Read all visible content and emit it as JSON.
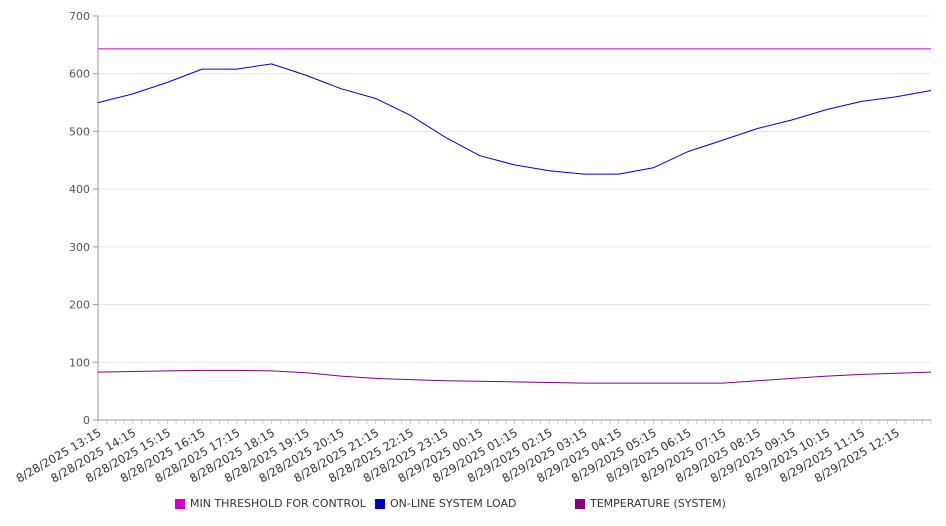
{
  "chart_data": {
    "type": "line",
    "ylim": [
      0,
      700
    ],
    "y_ticks": [
      0,
      100,
      200,
      300,
      400,
      500,
      600,
      700
    ],
    "x_range": [
      "8/28/2025 13:15",
      "8/29/2025 13:15"
    ],
    "x_tick_labels": [
      "8/28/2025 13:15",
      "8/28/2025 14:15",
      "8/28/2025 15:15",
      "8/28/2025 16:15",
      "8/28/2025 17:15",
      "8/28/2025 18:15",
      "8/28/2025 19:15",
      "8/28/2025 20:15",
      "8/28/2025 21:15",
      "8/28/2025 22:15",
      "8/28/2025 23:15",
      "8/29/2025 00:15",
      "8/29/2025 01:15",
      "8/29/2025 02:15",
      "8/29/2025 03:15",
      "8/29/2025 04:15",
      "8/29/2025 05:15",
      "8/29/2025 06:15",
      "8/29/2025 07:15",
      "8/29/2025 08:15",
      "8/29/2025 09:15",
      "8/29/2025 10:15",
      "8/29/2025 11:15",
      "8/29/2025 12:15"
    ],
    "grid": true,
    "legend_position": "bottom",
    "series": [
      {
        "name": "MIN THRESHOLD FOR CONTROL",
        "color": "#cc00cc",
        "x": [
          "8/28/2025 13:15",
          "8/29/2025 13:15"
        ],
        "values": [
          643,
          643
        ]
      },
      {
        "name": "ON-LINE SYSTEM LOAD",
        "color": "#0000cc",
        "x": [
          "8/28/2025 13:15",
          "8/28/2025 14:15",
          "8/28/2025 15:15",
          "8/28/2025 16:15",
          "8/28/2025 17:15",
          "8/28/2025 18:15",
          "8/28/2025 19:15",
          "8/28/2025 20:15",
          "8/28/2025 21:15",
          "8/28/2025 22:15",
          "8/28/2025 23:15",
          "8/29/2025 00:15",
          "8/29/2025 01:15",
          "8/29/2025 02:15",
          "8/29/2025 03:15",
          "8/29/2025 04:15",
          "8/29/2025 05:15",
          "8/29/2025 06:15",
          "8/29/2025 07:15",
          "8/29/2025 08:15",
          "8/29/2025 09:15",
          "8/29/2025 10:15",
          "8/29/2025 11:15",
          "8/29/2025 12:15",
          "8/29/2025 13:15"
        ],
        "values": [
          550,
          565,
          585,
          608,
          608,
          617,
          597,
          574,
          557,
          528,
          490,
          458,
          442,
          432,
          426,
          426,
          437,
          465,
          485,
          505,
          520,
          538,
          552,
          560,
          571
        ]
      },
      {
        "name": "TEMPERATURE (SYSTEM)",
        "color": "#800080",
        "x": [
          "8/28/2025 13:15",
          "8/28/2025 14:15",
          "8/28/2025 15:15",
          "8/28/2025 16:15",
          "8/28/2025 17:15",
          "8/28/2025 18:15",
          "8/28/2025 19:15",
          "8/28/2025 20:15",
          "8/28/2025 21:15",
          "8/28/2025 22:15",
          "8/28/2025 23:15",
          "8/29/2025 00:15",
          "8/29/2025 01:15",
          "8/29/2025 02:15",
          "8/29/2025 03:15",
          "8/29/2025 04:15",
          "8/29/2025 05:15",
          "8/29/2025 06:15",
          "8/29/2025 07:15",
          "8/29/2025 08:15",
          "8/29/2025 09:15",
          "8/29/2025 10:15",
          "8/29/2025 11:15",
          "8/29/2025 12:15",
          "8/29/2025 13:15"
        ],
        "values": [
          83,
          84,
          85,
          86,
          86,
          85,
          82,
          76,
          72,
          70,
          68,
          67,
          66,
          65,
          64,
          64,
          64,
          64,
          64,
          68,
          72,
          76,
          79,
          81,
          83
        ]
      }
    ]
  }
}
